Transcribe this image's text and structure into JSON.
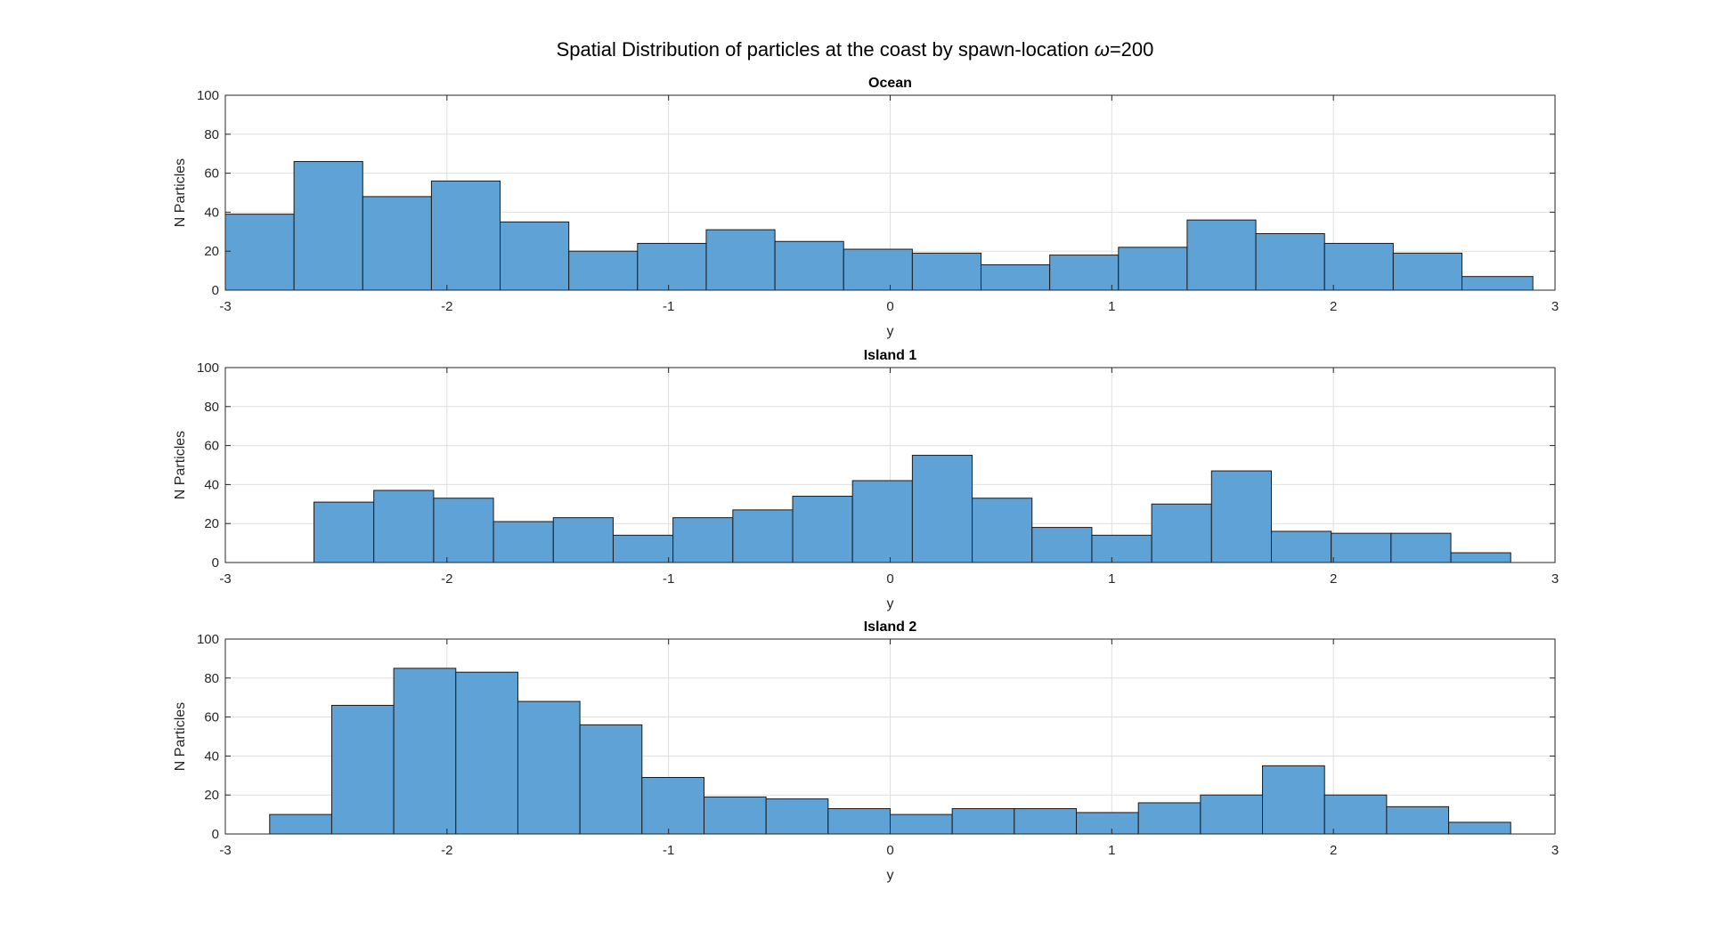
{
  "figure": {
    "title_prefix": "Spatial Distribution of particles at the coast  by spawn-location ",
    "title_symbol": "ω",
    "title_suffix": "=200"
  },
  "colors": {
    "bar_fill": "#5fa3d6",
    "bar_edge": "#1a1a1a",
    "axis": "#262626",
    "grid": "#dfdfdf"
  },
  "chart_data": [
    {
      "type": "bar",
      "title": "Ocean",
      "xlabel": "y",
      "ylabel": "N Particles",
      "xlim": [
        -3,
        3
      ],
      "ylim": [
        0,
        100
      ],
      "xticks": [
        -3,
        -2,
        -1,
        0,
        1,
        2,
        3
      ],
      "yticks": [
        0,
        20,
        40,
        60,
        80,
        100
      ],
      "grid": true,
      "bin_edges": [
        -3.0,
        -2.69,
        -2.38,
        -2.07,
        -1.76,
        -1.45,
        -1.14,
        -0.83,
        -0.52,
        -0.21,
        0.1,
        0.41,
        0.72,
        1.03,
        1.34,
        1.65,
        1.96,
        2.27,
        2.58,
        2.9
      ],
      "values": [
        39,
        66,
        48,
        56,
        35,
        20,
        24,
        31,
        25,
        21,
        19,
        13,
        18,
        22,
        36,
        29,
        24,
        19,
        7
      ]
    },
    {
      "type": "bar",
      "title": "Island 1",
      "xlabel": "y",
      "ylabel": "N Particles",
      "xlim": [
        -3,
        3
      ],
      "ylim": [
        0,
        100
      ],
      "xticks": [
        -3,
        -2,
        -1,
        0,
        1,
        2,
        3
      ],
      "yticks": [
        0,
        20,
        40,
        60,
        80,
        100
      ],
      "grid": true,
      "bin_edges": [
        -2.6,
        -2.33,
        -2.06,
        -1.79,
        -1.52,
        -1.25,
        -0.98,
        -0.71,
        -0.44,
        -0.17,
        0.1,
        0.37,
        0.64,
        0.91,
        1.18,
        1.45,
        1.72,
        1.99,
        2.26,
        2.53,
        2.8
      ],
      "values": [
        31,
        37,
        33,
        21,
        23,
        14,
        23,
        27,
        34,
        42,
        55,
        33,
        18,
        14,
        30,
        47,
        16,
        15,
        15,
        5
      ]
    },
    {
      "type": "bar",
      "title": "Island 2",
      "xlabel": "y",
      "ylabel": "N Particles",
      "xlim": [
        -3,
        3
      ],
      "ylim": [
        0,
        100
      ],
      "xticks": [
        -3,
        -2,
        -1,
        0,
        1,
        2,
        3
      ],
      "yticks": [
        0,
        20,
        40,
        60,
        80,
        100
      ],
      "grid": true,
      "bin_edges": [
        -2.8,
        -2.52,
        -2.24,
        -1.96,
        -1.68,
        -1.4,
        -1.12,
        -0.84,
        -0.56,
        -0.28,
        0.0,
        0.28,
        0.56,
        0.84,
        1.12,
        1.4,
        1.68,
        1.96,
        2.24,
        2.52,
        2.8
      ],
      "values": [
        10,
        66,
        85,
        83,
        68,
        56,
        29,
        19,
        18,
        13,
        10,
        13,
        13,
        11,
        16,
        20,
        35,
        20,
        14,
        6
      ]
    }
  ]
}
